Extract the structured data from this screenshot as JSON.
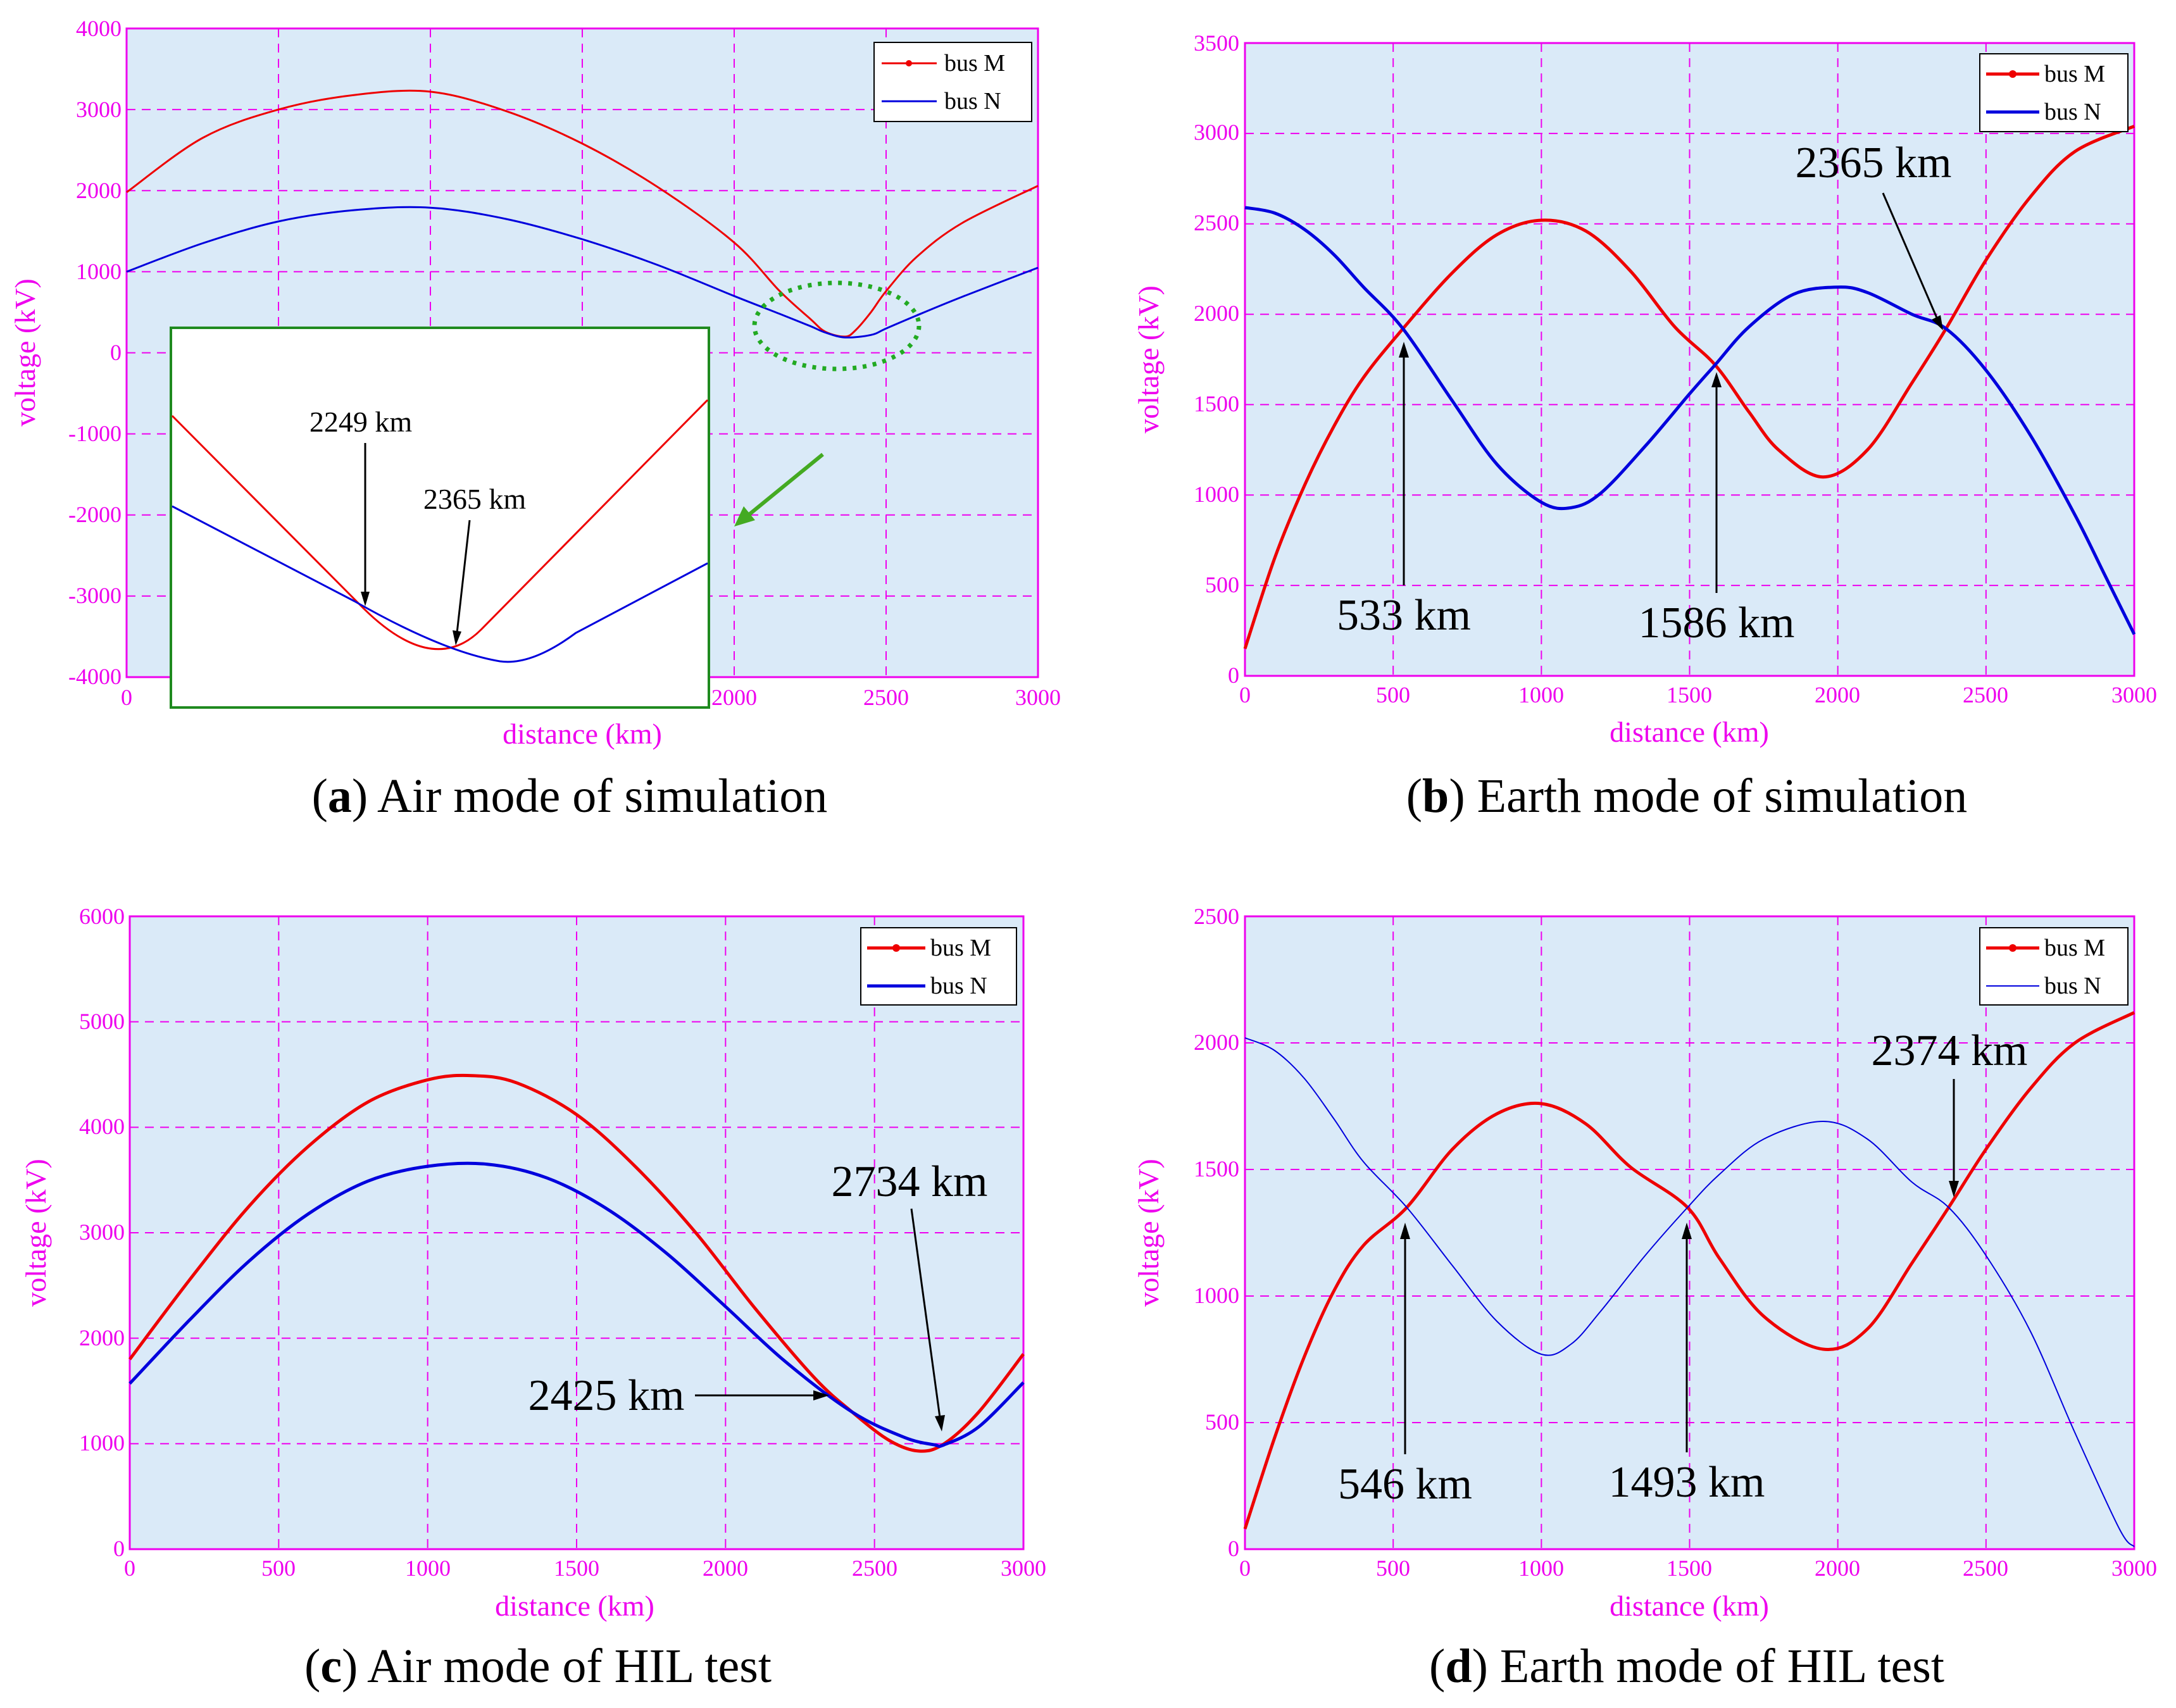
{
  "colors": {
    "plot_bg": "#daeaf8",
    "axis": "#ee00ee",
    "grid": "#ee00ee",
    "bus_m": "#ee0000",
    "bus_n": "#0000dd",
    "inset_frame": "#1f8a1f",
    "ellipse": "#22aa22",
    "pointer_arrow": "#44aa22"
  },
  "chart_data": [
    {
      "id": "a",
      "type": "line",
      "caption_letter": "a",
      "caption_text": "Air mode of simulation",
      "xlabel": "distance (km)",
      "ylabel": "voltage (kV)",
      "xlim": [
        0,
        3000
      ],
      "ylim": [
        -4000,
        4000
      ],
      "xticks": [
        0,
        500,
        1000,
        1500,
        2000,
        2500,
        3000
      ],
      "xtick_labels": [
        "0",
        "",
        "",
        "",
        "2000",
        "2500",
        "3000"
      ],
      "yticks": [
        -4000,
        -3000,
        -2000,
        -1000,
        0,
        1000,
        2000,
        3000,
        4000
      ],
      "ytick_labels": [
        "-4000",
        "-3000",
        "-2000",
        "-1000",
        "0",
        "1000",
        "2000",
        "3000",
        "4000"
      ],
      "series": [
        {
          "name": "bus M",
          "x": [
            0,
            250,
            500,
            750,
            1000,
            1250,
            1500,
            1750,
            2000,
            2150,
            2250,
            2300,
            2365,
            2400,
            2450,
            2500,
            2600,
            2750,
            3000
          ],
          "y": [
            1980,
            2650,
            3000,
            3180,
            3220,
            2980,
            2580,
            2040,
            1360,
            760,
            420,
            260,
            200,
            280,
            500,
            760,
            1180,
            1600,
            2060
          ]
        },
        {
          "name": "bus N",
          "x": [
            0,
            250,
            500,
            750,
            1000,
            1250,
            1500,
            1750,
            2000,
            2150,
            2250,
            2300,
            2365,
            2450,
            2500,
            2600,
            2750,
            3000
          ],
          "y": [
            1000,
            1350,
            1620,
            1760,
            1790,
            1650,
            1400,
            1080,
            700,
            480,
            330,
            250,
            190,
            220,
            300,
            460,
            690,
            1050
          ]
        }
      ],
      "legend": [
        "bus M",
        "bus N"
      ],
      "legend_position": "top-right",
      "inset": {
        "description": "zoom near 2300 km",
        "annotations": [
          {
            "label": "2249 km",
            "x": 2249
          },
          {
            "label": "2365 km",
            "x": 2365
          }
        ]
      },
      "highlight": "dotted ellipse near 2300 km"
    },
    {
      "id": "b",
      "type": "line",
      "caption_letter": "b",
      "caption_text": "Earth mode of simulation",
      "xlabel": "distance (km)",
      "ylabel": "voltage (kV)",
      "xlim": [
        0,
        3000
      ],
      "ylim": [
        0,
        3500
      ],
      "xticks": [
        0,
        500,
        1000,
        1500,
        2000,
        2500,
        3000
      ],
      "xtick_labels": [
        "0",
        "500",
        "1000",
        "1500",
        "2000",
        "2500",
        "3000"
      ],
      "yticks": [
        0,
        500,
        1000,
        1500,
        2000,
        2500,
        3000,
        3500
      ],
      "ytick_labels": [
        "0",
        "500",
        "1000",
        "1500",
        "2000",
        "2500",
        "3000",
        "3500"
      ],
      "series": [
        {
          "name": "bus M",
          "x": [
            0,
            100,
            200,
            300,
            400,
            533,
            700,
            850,
            1000,
            1150,
            1300,
            1450,
            1586,
            1700,
            1800,
            1950,
            2100,
            2250,
            2365,
            2500,
            2650,
            2800,
            3000
          ],
          "y": [
            150,
            650,
            1050,
            1380,
            1650,
            1920,
            2230,
            2440,
            2520,
            2460,
            2240,
            1930,
            1720,
            1460,
            1250,
            1100,
            1250,
            1620,
            1920,
            2300,
            2650,
            2900,
            3040
          ]
        },
        {
          "name": "bus N",
          "x": [
            0,
            100,
            200,
            300,
            400,
            533,
            700,
            850,
            1000,
            1100,
            1200,
            1350,
            1500,
            1586,
            1700,
            1850,
            2000,
            2100,
            2250,
            2365,
            2500,
            2650,
            2800,
            2900,
            3000
          ],
          "y": [
            2590,
            2560,
            2470,
            2330,
            2150,
            1920,
            1520,
            1170,
            960,
            930,
            1010,
            1270,
            1560,
            1720,
            1930,
            2110,
            2150,
            2120,
            2000,
            1920,
            1690,
            1330,
            890,
            560,
            230
          ]
        }
      ],
      "legend": [
        "bus M",
        "bus N"
      ],
      "legend_position": "top-right",
      "annotations": [
        {
          "label": "533 km",
          "x": 533
        },
        {
          "label": "1586 km",
          "x": 1586
        },
        {
          "label": "2365 km",
          "x": 2365
        }
      ]
    },
    {
      "id": "c",
      "type": "line",
      "caption_letter": "c",
      "caption_text": "Air mode of HIL test",
      "xlabel": "distance (km)",
      "ylabel": "voltage (kV)",
      "xlim": [
        0,
        3000
      ],
      "ylim": [
        0,
        6000
      ],
      "xticks": [
        0,
        500,
        1000,
        1500,
        2000,
        2500,
        3000
      ],
      "xtick_labels": [
        "0",
        "500",
        "1000",
        "1500",
        "2000",
        "2500",
        "3000"
      ],
      "yticks": [
        0,
        1000,
        2000,
        3000,
        4000,
        5000,
        6000
      ],
      "ytick_labels": [
        "0",
        "1000",
        "2000",
        "3000",
        "4000",
        "5000",
        "6000"
      ],
      "series": [
        {
          "name": "bus M",
          "x": [
            0,
            200,
            400,
            600,
            800,
            1000,
            1150,
            1300,
            1500,
            1700,
            1900,
            2100,
            2300,
            2425,
            2550,
            2650,
            2734,
            2850,
            3000
          ],
          "y": [
            1800,
            2550,
            3250,
            3820,
            4240,
            4450,
            4490,
            4420,
            4120,
            3620,
            3000,
            2280,
            1620,
            1300,
            1030,
            930,
            1000,
            1300,
            1850
          ]
        },
        {
          "name": "bus N",
          "x": [
            0,
            200,
            400,
            600,
            800,
            1000,
            1200,
            1400,
            1600,
            1800,
            2000,
            2200,
            2425,
            2600,
            2700,
            2734,
            2850,
            3000
          ],
          "y": [
            1570,
            2170,
            2730,
            3180,
            3490,
            3630,
            3650,
            3520,
            3230,
            2810,
            2300,
            1780,
            1300,
            1060,
            990,
            990,
            1160,
            1580
          ]
        }
      ],
      "legend": [
        "bus M",
        "bus N"
      ],
      "legend_position": "top-right",
      "annotations": [
        {
          "label": "2425 km",
          "x": 2425
        },
        {
          "label": "2734 km",
          "x": 2734
        }
      ]
    },
    {
      "id": "d",
      "type": "line",
      "caption_letter": "d",
      "caption_text": "Earth mode of HIL test",
      "xlabel": "distance (km)",
      "ylabel": "voltage (kV)",
      "xlim": [
        0,
        3000
      ],
      "ylim": [
        0,
        2500
      ],
      "xticks": [
        0,
        500,
        1000,
        1500,
        2000,
        2500,
        3000
      ],
      "xtick_labels": [
        "0",
        "500",
        "1000",
        "1500",
        "2000",
        "2500",
        "3000"
      ],
      "yticks": [
        0,
        500,
        1000,
        1500,
        2000,
        2500
      ],
      "ytick_labels": [
        "0",
        "500",
        "1000",
        "1500",
        "2000",
        "2500"
      ],
      "series": [
        {
          "name": "bus M",
          "x": [
            0,
            100,
            200,
            300,
            400,
            546,
            700,
            850,
            1000,
            1150,
            1300,
            1493,
            1600,
            1750,
            1950,
            2100,
            2250,
            2374,
            2500,
            2650,
            2800,
            3000
          ],
          "y": [
            80,
            440,
            760,
            1020,
            1200,
            1350,
            1580,
            1720,
            1760,
            1680,
            1510,
            1350,
            1150,
            920,
            790,
            870,
            1130,
            1350,
            1580,
            1820,
            2000,
            2120
          ]
        },
        {
          "name": "bus N",
          "x": [
            0,
            100,
            200,
            300,
            400,
            546,
            700,
            850,
            1000,
            1100,
            1200,
            1350,
            1493,
            1600,
            1750,
            1950,
            2100,
            2250,
            2374,
            2500,
            2650,
            2800,
            2950,
            3000
          ],
          "y": [
            2020,
            1970,
            1860,
            1700,
            1530,
            1350,
            1120,
            900,
            770,
            810,
            940,
            1160,
            1350,
            1480,
            1620,
            1690,
            1620,
            1450,
            1350,
            1160,
            860,
            460,
            80,
            10
          ]
        }
      ],
      "legend": [
        "bus M",
        "bus N"
      ],
      "legend_position": "top-right",
      "annotations": [
        {
          "label": "546 km",
          "x": 546
        },
        {
          "label": "1493 km",
          "x": 1493
        },
        {
          "label": "2374 km",
          "x": 2374
        }
      ]
    }
  ]
}
